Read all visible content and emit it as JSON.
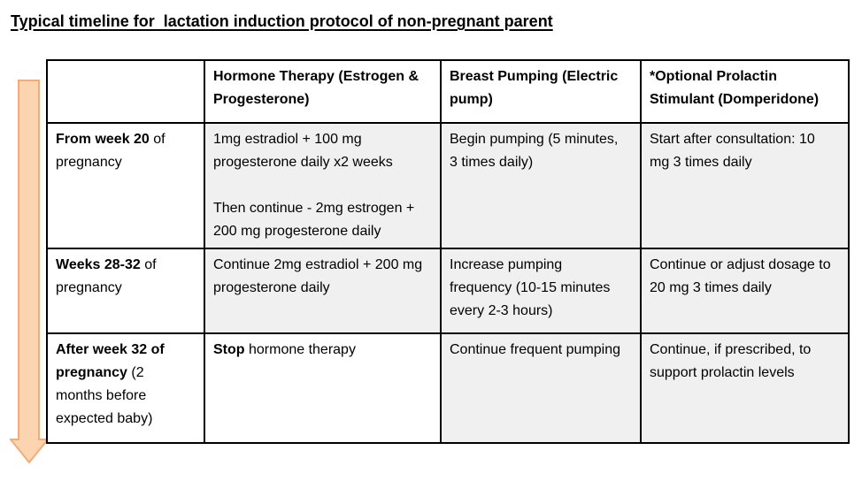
{
  "page_title": "Typical timeline for  lactation induction protocol of non-pregnant parent",
  "colors": {
    "arrow_fill": "#FCD5B0",
    "arrow_stroke": "#F2AC79",
    "cell_shaded": "#F0F0F0",
    "table_border": "#000000",
    "text": "#000000",
    "background": "#FFFFFF"
  },
  "icons": {
    "timeline_arrow": "down-block-arrow"
  },
  "table": {
    "columns": [
      {
        "label": ""
      },
      {
        "label": "Hormone Therapy (Estrogen & Progesterone)"
      },
      {
        "label": "Breast Pumping (Electric pump)"
      },
      {
        "label": "*Optional Prolactin Stimulant (Domperidone)"
      }
    ],
    "rows": [
      {
        "cells": [
          {
            "shaded": false,
            "paras": [
              [
                {
                  "t": "From week 20",
                  "b": true
                },
                {
                  "t": " of pregnancy",
                  "b": false
                }
              ]
            ]
          },
          {
            "shaded": true,
            "paras": [
              [
                {
                  "t": "1mg estradiol + 100 mg progesterone daily x2 weeks",
                  "b": false
                }
              ],
              [
                {
                  "t": "Then continue - 2mg estrogen + 200 mg progesterone daily",
                  "b": false
                }
              ]
            ]
          },
          {
            "shaded": true,
            "paras": [
              [
                {
                  "t": "Begin pumping (5 minutes, 3 times daily)",
                  "b": false
                }
              ]
            ]
          },
          {
            "shaded": true,
            "paras": [
              [
                {
                  "t": "Start after consultation: 10 mg 3 times daily",
                  "b": false
                }
              ]
            ]
          }
        ]
      },
      {
        "cells": [
          {
            "shaded": false,
            "paras": [
              [
                {
                  "t": "Weeks 28-32",
                  "b": true
                },
                {
                  "t": " of pregnancy",
                  "b": false
                }
              ]
            ]
          },
          {
            "shaded": true,
            "paras": [
              [
                {
                  "t": "Continue 2mg estradiol + 200 mg progesterone daily",
                  "b": false
                }
              ]
            ]
          },
          {
            "shaded": true,
            "paras": [
              [
                {
                  "t": "Increase pumping frequency (10-15 minutes every 2-3 hours)",
                  "b": false
                }
              ]
            ]
          },
          {
            "shaded": true,
            "paras": [
              [
                {
                  "t": "Continue or adjust dosage to 20 mg 3 times daily",
                  "b": false
                }
              ]
            ]
          }
        ]
      },
      {
        "cells": [
          {
            "shaded": false,
            "paras": [
              [
                {
                  "t": "After week 32 of pregnancy",
                  "b": true
                },
                {
                  "t": " (2 months before expected baby)",
                  "b": false
                }
              ]
            ]
          },
          {
            "shaded": false,
            "paras": [
              [
                {
                  "t": "Stop",
                  "b": true
                },
                {
                  "t": " hormone therapy",
                  "b": false
                }
              ]
            ]
          },
          {
            "shaded": true,
            "paras": [
              [
                {
                  "t": "Continue frequent pumping",
                  "b": false
                }
              ]
            ]
          },
          {
            "shaded": true,
            "paras": [
              [
                {
                  "t": "Continue, if prescribed, to support prolactin levels",
                  "b": false
                }
              ]
            ]
          }
        ]
      }
    ]
  }
}
